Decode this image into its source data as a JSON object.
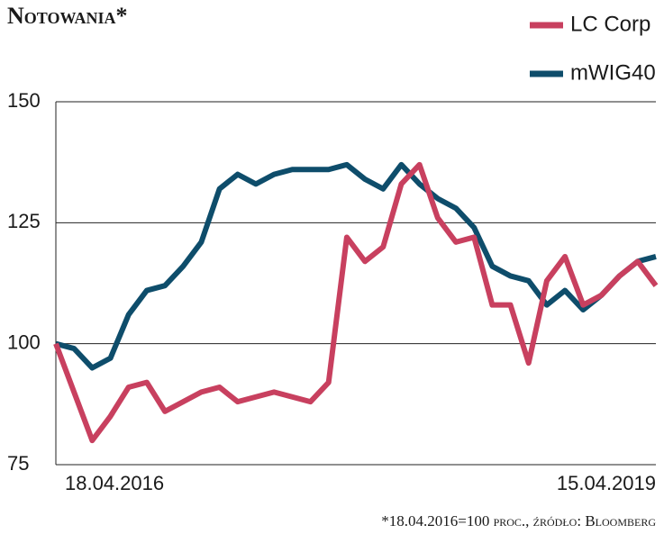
{
  "chart_data": {
    "type": "line",
    "title": "Notowania*",
    "footnote": "*18.04.2016=100 proc., źródło: Bloomberg",
    "categories": [
      "18.04.2016",
      null,
      null,
      null,
      null,
      null,
      null,
      null,
      null,
      null,
      null,
      null,
      null,
      null,
      null,
      null,
      null,
      null,
      null,
      null,
      null,
      null,
      null,
      null,
      null,
      null,
      null,
      null,
      null,
      null,
      null,
      null,
      null,
      "15.04.2019"
    ],
    "series": [
      {
        "name": "LC Corp",
        "color": "#c8405f",
        "values": [
          100,
          90,
          80,
          85,
          91,
          92,
          86,
          88,
          90,
          91,
          88,
          89,
          90,
          89,
          88,
          92,
          122,
          117,
          120,
          133,
          137,
          126,
          121,
          122,
          108,
          108,
          96,
          113,
          118,
          108,
          110,
          114,
          117,
          112
        ]
      },
      {
        "name": "mWIG40",
        "color": "#0e4d6b",
        "values": [
          100,
          99,
          95,
          97,
          106,
          111,
          112,
          116,
          121,
          132,
          135,
          133,
          135,
          136,
          136,
          136,
          137,
          134,
          132,
          137,
          133,
          130,
          128,
          124,
          116,
          114,
          113,
          108,
          111,
          107,
          110,
          114,
          117,
          118
        ]
      }
    ],
    "ylim": [
      75,
      150
    ],
    "yticks": [
      75,
      100,
      125,
      150
    ],
    "grid": true
  }
}
